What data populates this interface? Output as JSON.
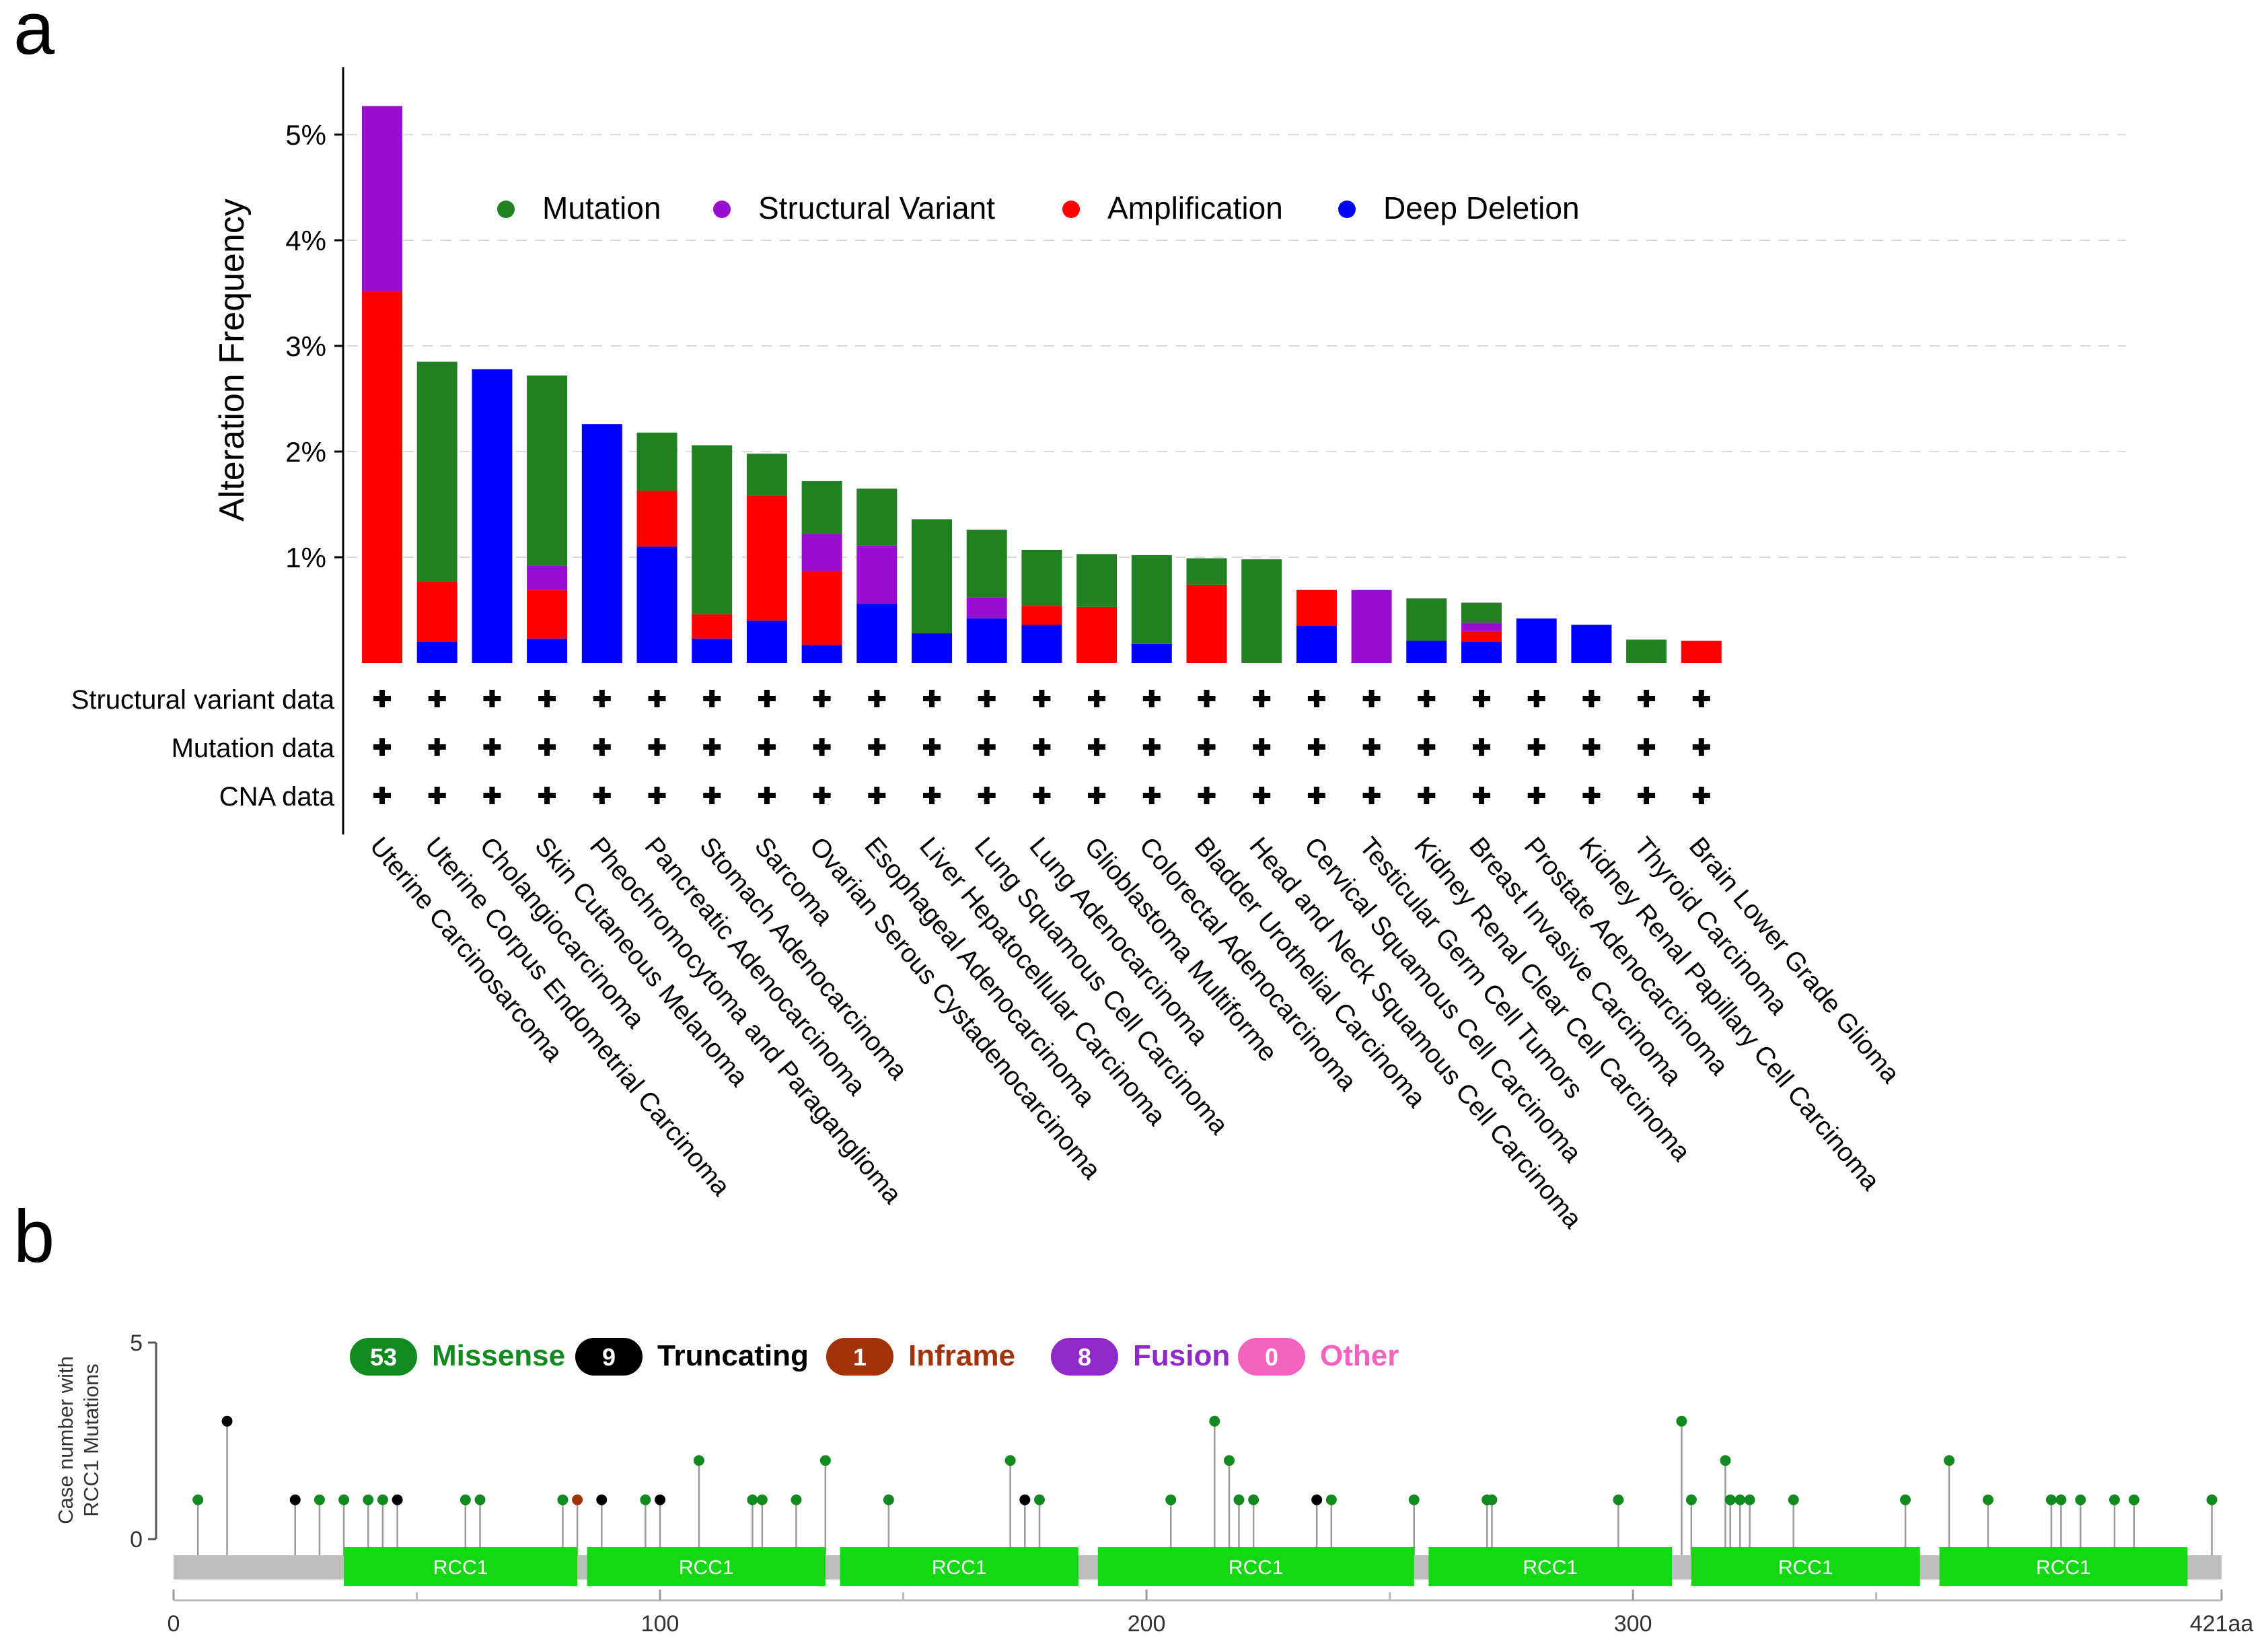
{
  "panels": {
    "a": "a",
    "b": "b"
  },
  "colors": {
    "mutation": "#218021",
    "structural_variant": "#9a0ecf",
    "amplification": "#ff0000",
    "deep_deletion": "#0000ff",
    "missense": "#128a1f",
    "truncating": "#000000",
    "inframe": "#a1320a",
    "fusion": "#8f2ac9",
    "other": "#f263bf",
    "domain": "#15d815",
    "backbone": "#bdbdbd"
  },
  "chart_data": [
    {
      "type": "bar",
      "stacked": true,
      "ylabel": "Alteration Frequency",
      "ylim": [
        0,
        5.3
      ],
      "yticks": [
        "1%",
        "2%",
        "3%",
        "4%",
        "5%"
      ],
      "grid": true,
      "legend_position": "top",
      "legend": [
        {
          "key": "mutation",
          "label": "Mutation"
        },
        {
          "key": "structural_variant",
          "label": "Structural Variant"
        },
        {
          "key": "amplification",
          "label": "Amplification"
        },
        {
          "key": "deep_deletion",
          "label": "Deep Deletion"
        }
      ],
      "categories": [
        "Uterine Carcinosarcoma",
        "Uterine Corpus Endometrial Carcinoma",
        "Cholangiocarcinoma",
        "Skin Cutaneous Melanoma",
        "Pheochromocytoma and Paraganglioma",
        "Pancreatic Adenocarcinoma",
        "Stomach Adenocarcinoma",
        "Sarcoma",
        "Ovarian Serous Cystadenocarcinoma",
        "Esophageal Adenocarcinoma",
        "Liver Hepatocellular Carcinoma",
        "Lung Squamous Cell Carcinoma",
        "Lung Adenocarcinoma",
        "Glioblastoma Multiforme",
        "Colorectal Adenocarcinoma",
        "Bladder Urothelial Carcinoma",
        "Head and Neck Squamous Cell Carcinoma",
        "Cervical Squamous Cell Carcinoma",
        "Testicular Germ Cell Tumors",
        "Kidney Renal Clear Cell Carcinoma",
        "Breast Invasive Carcinoma",
        "Prostate Adenocarcinoma",
        "Kidney Renal Papillary Cell Carcinoma",
        "Thyroid Carcinoma",
        "Brain Lower Grade Glioma"
      ],
      "series": [
        {
          "name": "Deep Deletion",
          "key": "deep_deletion",
          "values": [
            0,
            0.2,
            2.78,
            0.23,
            2.26,
            1.1,
            0.23,
            0.4,
            0.17,
            0.56,
            0.28,
            0.42,
            0.36,
            0,
            0.18,
            0,
            0,
            0.35,
            0,
            0.21,
            0.2,
            0.42,
            0.36,
            0,
            0
          ]
        },
        {
          "name": "Amplification",
          "key": "amplification",
          "values": [
            3.52,
            0.57,
            0,
            0.46,
            0,
            0.53,
            0.23,
            1.18,
            0.7,
            0,
            0,
            0,
            0.18,
            0.53,
            0,
            0.74,
            0,
            0.34,
            0,
            0,
            0.1,
            0,
            0,
            0,
            0.21
          ]
        },
        {
          "name": "Structural Variant",
          "key": "structural_variant",
          "values": [
            1.75,
            0,
            0,
            0.23,
            0,
            0,
            0,
            0,
            0.35,
            0.55,
            0,
            0.2,
            0,
            0,
            0,
            0,
            0,
            0,
            0.69,
            0,
            0.08,
            0,
            0,
            0,
            0
          ]
        },
        {
          "name": "Mutation",
          "key": "mutation",
          "values": [
            0,
            2.08,
            0,
            1.8,
            0,
            0.55,
            1.6,
            0.4,
            0.5,
            0.54,
            1.08,
            0.64,
            0.53,
            0.5,
            0.84,
            0.25,
            0.98,
            0,
            0,
            0.4,
            0.19,
            0,
            0,
            0.22,
            0
          ]
        }
      ],
      "profile_rows": [
        "Structural variant data",
        "Mutation data",
        "CNA data"
      ],
      "profile_marker": "+"
    },
    {
      "type": "scatter",
      "subtype": "lollipop",
      "ylabel": [
        "Case number with",
        "RCC1 Mutations"
      ],
      "ylim": [
        0,
        5
      ],
      "yticks": [
        "0",
        "5"
      ],
      "xlim": [
        0,
        421
      ],
      "xticks": [
        "0",
        "100",
        "200",
        "300",
        "421aa"
      ],
      "xtick_values": [
        0,
        100,
        200,
        300,
        421
      ],
      "legend": [
        {
          "key": "missense",
          "count": "53",
          "label": "Missense"
        },
        {
          "key": "truncating",
          "count": "9",
          "label": "Truncating"
        },
        {
          "key": "inframe",
          "count": "1",
          "label": "Inframe"
        },
        {
          "key": "fusion",
          "count": "8",
          "label": "Fusion"
        },
        {
          "key": "other",
          "count": "0",
          "label": "Other"
        }
      ],
      "domains": [
        {
          "label": "RCC1",
          "start": 35,
          "end": 83
        },
        {
          "label": "RCC1",
          "start": 85,
          "end": 134
        },
        {
          "label": "RCC1",
          "start": 137,
          "end": 186
        },
        {
          "label": "RCC1",
          "start": 190,
          "end": 255
        },
        {
          "label": "RCC1",
          "start": 258,
          "end": 308
        },
        {
          "label": "RCC1",
          "start": 312,
          "end": 359
        },
        {
          "label": "RCC1",
          "start": 363,
          "end": 414
        }
      ],
      "mutations": [
        {
          "pos": 5,
          "count": 1,
          "type": "missense"
        },
        {
          "pos": 11,
          "count": 3,
          "type": "truncating"
        },
        {
          "pos": 25,
          "count": 1,
          "type": "truncating"
        },
        {
          "pos": 30,
          "count": 1,
          "type": "missense"
        },
        {
          "pos": 35,
          "count": 1,
          "type": "missense"
        },
        {
          "pos": 40,
          "count": 1,
          "type": "missense"
        },
        {
          "pos": 43,
          "count": 1,
          "type": "missense"
        },
        {
          "pos": 46,
          "count": 1,
          "type": "truncating"
        },
        {
          "pos": 60,
          "count": 1,
          "type": "missense"
        },
        {
          "pos": 63,
          "count": 1,
          "type": "missense"
        },
        {
          "pos": 80,
          "count": 1,
          "type": "missense"
        },
        {
          "pos": 83,
          "count": 1,
          "type": "inframe"
        },
        {
          "pos": 88,
          "count": 1,
          "type": "truncating"
        },
        {
          "pos": 97,
          "count": 1,
          "type": "missense"
        },
        {
          "pos": 100,
          "count": 1,
          "type": "truncating"
        },
        {
          "pos": 108,
          "count": 2,
          "type": "missense"
        },
        {
          "pos": 119,
          "count": 1,
          "type": "missense"
        },
        {
          "pos": 121,
          "count": 1,
          "type": "missense"
        },
        {
          "pos": 128,
          "count": 1,
          "type": "missense"
        },
        {
          "pos": 134,
          "count": 2,
          "type": "missense"
        },
        {
          "pos": 147,
          "count": 1,
          "type": "missense"
        },
        {
          "pos": 172,
          "count": 2,
          "type": "missense"
        },
        {
          "pos": 175,
          "count": 1,
          "type": "truncating"
        },
        {
          "pos": 178,
          "count": 1,
          "type": "missense"
        },
        {
          "pos": 205,
          "count": 1,
          "type": "missense"
        },
        {
          "pos": 214,
          "count": 3,
          "type": "missense"
        },
        {
          "pos": 217,
          "count": 2,
          "type": "missense"
        },
        {
          "pos": 219,
          "count": 1,
          "type": "missense"
        },
        {
          "pos": 222,
          "count": 1,
          "type": "missense"
        },
        {
          "pos": 235,
          "count": 1,
          "type": "truncating"
        },
        {
          "pos": 238,
          "count": 1,
          "type": "missense"
        },
        {
          "pos": 255,
          "count": 1,
          "type": "missense"
        },
        {
          "pos": 270,
          "count": 1,
          "type": "missense"
        },
        {
          "pos": 271,
          "count": 1,
          "type": "missense"
        },
        {
          "pos": 297,
          "count": 1,
          "type": "missense"
        },
        {
          "pos": 310,
          "count": 3,
          "type": "missense"
        },
        {
          "pos": 312,
          "count": 1,
          "type": "missense"
        },
        {
          "pos": 319,
          "count": 2,
          "type": "missense"
        },
        {
          "pos": 320,
          "count": 1,
          "type": "missense"
        },
        {
          "pos": 322,
          "count": 1,
          "type": "missense"
        },
        {
          "pos": 324,
          "count": 1,
          "type": "missense"
        },
        {
          "pos": 333,
          "count": 1,
          "type": "missense"
        },
        {
          "pos": 356,
          "count": 1,
          "type": "missense"
        },
        {
          "pos": 365,
          "count": 2,
          "type": "missense"
        },
        {
          "pos": 373,
          "count": 1,
          "type": "missense"
        },
        {
          "pos": 386,
          "count": 1,
          "type": "missense"
        },
        {
          "pos": 388,
          "count": 1,
          "type": "missense"
        },
        {
          "pos": 392,
          "count": 1,
          "type": "missense"
        },
        {
          "pos": 399,
          "count": 1,
          "type": "missense"
        },
        {
          "pos": 403,
          "count": 1,
          "type": "missense"
        },
        {
          "pos": 419,
          "count": 1,
          "type": "missense"
        }
      ]
    }
  ]
}
